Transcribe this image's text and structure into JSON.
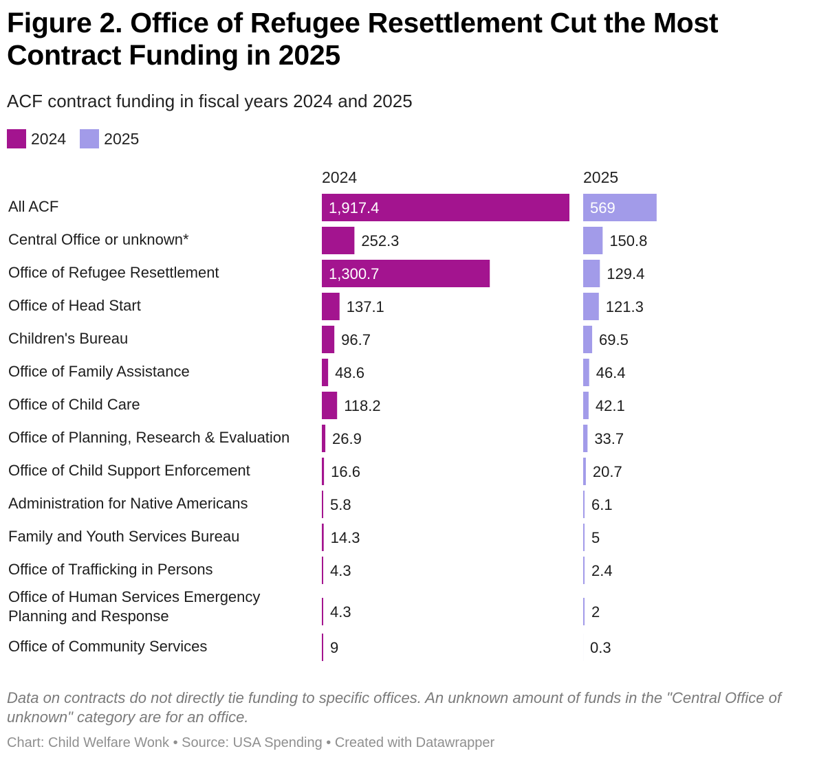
{
  "title": "Figure 2. Office of Refugee Resettlement Cut the Most Contract Funding in 2025",
  "subtitle": "ACF contract funding in fiscal years 2024 and 2025",
  "legend": [
    {
      "label": "2024",
      "color": "#a3148f"
    },
    {
      "label": "2025",
      "color": "#a29be9"
    }
  ],
  "chart_data": {
    "type": "bar",
    "orientation": "horizontal",
    "layout": "split-columns",
    "categories": [
      "All ACF",
      "Central Office or unknown*",
      "Office of Refugee Resettlement",
      "Office of Head Start",
      "Children's Bureau",
      "Office of Family Assistance",
      "Office of Child Care",
      "Office of Planning, Research & Evaluation",
      "Office of Child Support Enforcement",
      "Administration for Native Americans",
      "Family and Youth Services Bureau",
      "Office of Trafficking in Persons",
      "Office of Human Services Emergency Planning and Response",
      "Office of Community Services"
    ],
    "series": [
      {
        "name": "2024",
        "color": "#a3148f",
        "values": [
          1917.4,
          252.3,
          1300.7,
          137.1,
          96.7,
          48.6,
          118.2,
          26.9,
          16.6,
          5.8,
          14.3,
          4.3,
          4.3,
          9
        ],
        "labels": [
          "1,917.4",
          "252.3",
          "1,300.7",
          "137.1",
          "96.7",
          "48.6",
          "118.2",
          "26.9",
          "16.6",
          "5.8",
          "14.3",
          "4.3",
          "4.3",
          "9"
        ]
      },
      {
        "name": "2025",
        "color": "#a29be9",
        "values": [
          569,
          150.8,
          129.4,
          121.3,
          69.5,
          46.4,
          42.1,
          33.7,
          20.7,
          6.1,
          5,
          2.4,
          2,
          0.3
        ],
        "labels": [
          "569",
          "150.8",
          "129.4",
          "121.3",
          "69.5",
          "46.4",
          "42.1",
          "33.7",
          "20.7",
          "6.1",
          "5",
          "2.4",
          "2",
          "0.3"
        ]
      }
    ],
    "xlim": [
      0,
      1917.4
    ],
    "grid": false,
    "legend_position": "top-left"
  },
  "note": "Data on contracts do not directly tie funding to specific offices. An unknown amount of funds in the \"Central Office of unknown\" category are for an office.",
  "credit": "Chart: Child Welfare Wonk • Source: USA Spending • Created with Datawrapper"
}
